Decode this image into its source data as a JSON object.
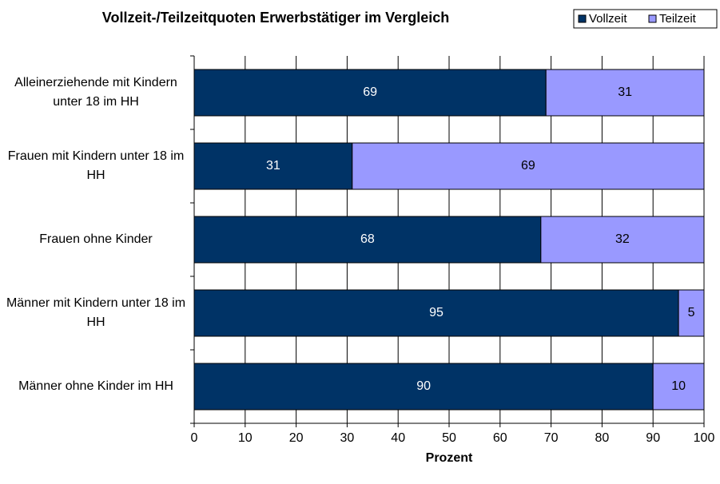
{
  "chart_data": {
    "type": "stacked_barh",
    "title": "Vollzeit-/Teilzeitquoten Erwerbstätiger im Vergleich",
    "xlabel": "Prozent",
    "categories": [
      "Alleinerziehende mit Kindern unter 18 im HH",
      "Frauen mit Kindern unter 18 im HH",
      "Frauen ohne Kinder",
      "Männer mit Kindern unter 18 im HH",
      "Männer ohne Kinder im HH"
    ],
    "series": [
      {
        "name": "Vollzeit",
        "color": "#003366",
        "label_color": "#ffffff",
        "values": [
          69,
          31,
          68,
          95,
          90
        ]
      },
      {
        "name": "Teilzeit",
        "color": "#9999ff",
        "label_color": "#000000",
        "values": [
          31,
          69,
          32,
          5,
          10
        ]
      }
    ],
    "xlim": [
      0,
      100
    ],
    "xticks": [
      0,
      10,
      20,
      30,
      40,
      50,
      60,
      70,
      80,
      90,
      100
    ],
    "grid": true,
    "legend": "top-right"
  }
}
